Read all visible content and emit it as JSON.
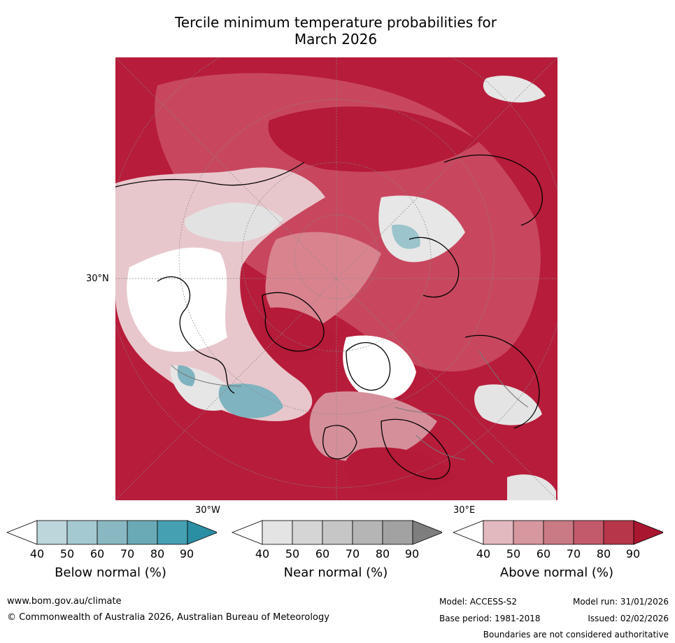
{
  "title": {
    "line1": "Tercile minimum temperature probabilities for",
    "line2": "March 2026"
  },
  "axis_labels": {
    "lat_30n": "30°N",
    "lon_30w": "30°W",
    "lon_30e": "30°E"
  },
  "colorbars": [
    {
      "label": "Below normal (%)",
      "ticks": [
        "40",
        "50",
        "60",
        "70",
        "80",
        "90"
      ],
      "colors": [
        "#ffffff",
        "#bcd6db",
        "#a5c9d0",
        "#8ab8c2",
        "#6aaab6",
        "#45a0b2",
        "#2b8fa4"
      ]
    },
    {
      "label": "Near normal (%)",
      "ticks": [
        "40",
        "50",
        "60",
        "70",
        "80",
        "90"
      ],
      "colors": [
        "#ffffff",
        "#e4e4e4",
        "#d5d5d5",
        "#c6c6c6",
        "#b5b5b5",
        "#a2a2a2",
        "#7e7e7e"
      ]
    },
    {
      "label": "Above normal (%)",
      "ticks": [
        "40",
        "50",
        "60",
        "70",
        "80",
        "90"
      ],
      "colors": [
        "#ffffff",
        "#e2b9bf",
        "#d7979f",
        "#ca7a84",
        "#c25a6b",
        "#b73649",
        "#a8162f"
      ]
    }
  ],
  "footer": {
    "website": "www.bom.gov.au/climate",
    "copyright": "© Commonwealth of Australia 2026, Australian Bureau of Meteorology",
    "model": "Model: ACCESS-S2",
    "model_run": "Model run: 31/01/2026",
    "base_period": "Base period: 1981-2018",
    "issued": "Issued: 02/02/2026",
    "disclaimer": "Boundaries are not considered authoritative"
  }
}
